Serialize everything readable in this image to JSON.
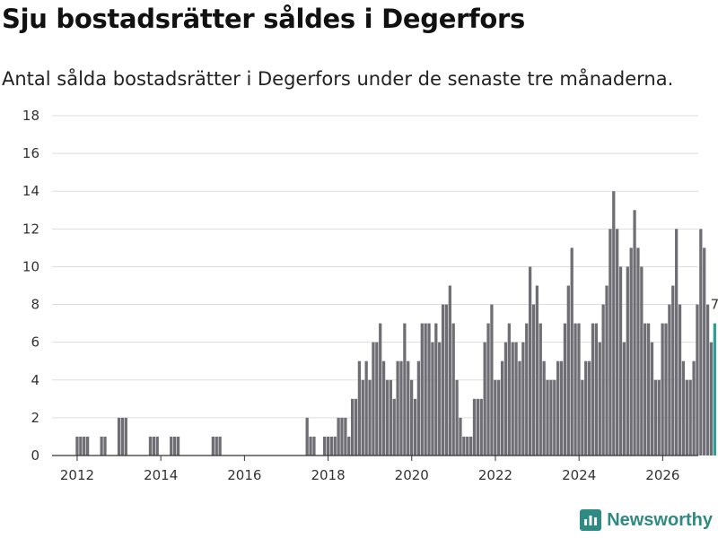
{
  "title": "Sju bostadsrätter såldes i Degerfors",
  "subtitle": "Antal sålda bostadsrätter i Degerfors under de senaste tre månaderna.",
  "brand": "Newsworthy",
  "colors": {
    "bar": "#6f6e74",
    "highlight": "#2e9e96",
    "grid": "#dddddd",
    "axis": "#333333",
    "brand": "#2e8a82"
  },
  "chart_data": {
    "type": "bar",
    "title": "Sju bostadsrätter såldes i Degerfors",
    "xlabel": "",
    "ylabel": "",
    "ylim": [
      0,
      18
    ],
    "yticks": [
      0,
      2,
      4,
      6,
      8,
      10,
      12,
      14,
      16,
      18
    ],
    "x_range": [
      2011.4,
      2026.85
    ],
    "x_tick_labels": [
      "2012",
      "2014",
      "2016",
      "2018",
      "2020",
      "2022",
      "2024",
      "2026"
    ],
    "bar_step_years": 0.0833,
    "start": 2012.0,
    "highlight_label": "7",
    "values": [
      1,
      1,
      1,
      1,
      0,
      0,
      0,
      1,
      1,
      0,
      0,
      0,
      2,
      2,
      2,
      0,
      0,
      0,
      0,
      0,
      0,
      1,
      1,
      1,
      0,
      0,
      0,
      1,
      1,
      1,
      0,
      0,
      0,
      0,
      0,
      0,
      0,
      0,
      0,
      1,
      1,
      1,
      0,
      0,
      0,
      0,
      0,
      0,
      0,
      0,
      0,
      0,
      0,
      0,
      0,
      0,
      0,
      0,
      0,
      0,
      0,
      0,
      0,
      0,
      0,
      0,
      2,
      1,
      1,
      0,
      0,
      1,
      1,
      1,
      1,
      2,
      2,
      2,
      1,
      3,
      3,
      5,
      4,
      5,
      4,
      6,
      6,
      7,
      5,
      4,
      4,
      3,
      5,
      5,
      7,
      5,
      4,
      3,
      5,
      7,
      7,
      7,
      6,
      7,
      6,
      8,
      8,
      9,
      7,
      4,
      2,
      1,
      1,
      1,
      3,
      3,
      3,
      6,
      7,
      8,
      4,
      4,
      5,
      6,
      7,
      6,
      6,
      5,
      6,
      7,
      10,
      8,
      9,
      7,
      5,
      4,
      4,
      4,
      5,
      5,
      7,
      9,
      11,
      7,
      7,
      4,
      5,
      5,
      7,
      7,
      6,
      8,
      9,
      12,
      14,
      12,
      10,
      6,
      10,
      11,
      13,
      11,
      10,
      7,
      7,
      6,
      4,
      4,
      7,
      7,
      8,
      9,
      12,
      8,
      5,
      4,
      4,
      5,
      8,
      12,
      11,
      8,
      6,
      7
    ]
  }
}
